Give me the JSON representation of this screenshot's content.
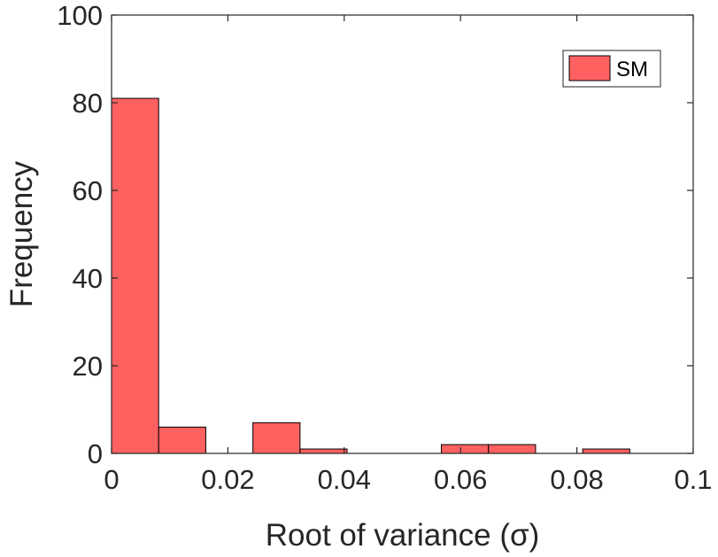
{
  "chart_data": {
    "type": "bar",
    "bins": [
      {
        "x0": 0.0,
        "x1": 0.0081,
        "count": 81
      },
      {
        "x0": 0.0081,
        "x1": 0.0162,
        "count": 6
      },
      {
        "x0": 0.0162,
        "x1": 0.0243,
        "count": 0
      },
      {
        "x0": 0.0243,
        "x1": 0.0324,
        "count": 7
      },
      {
        "x0": 0.0324,
        "x1": 0.0405,
        "count": 1
      },
      {
        "x0": 0.0405,
        "x1": 0.0486,
        "count": 0
      },
      {
        "x0": 0.0486,
        "x1": 0.0567,
        "count": 0
      },
      {
        "x0": 0.0567,
        "x1": 0.0648,
        "count": 2
      },
      {
        "x0": 0.0648,
        "x1": 0.0729,
        "count": 2
      },
      {
        "x0": 0.0729,
        "x1": 0.081,
        "count": 0
      },
      {
        "x0": 0.081,
        "x1": 0.0891,
        "count": 1
      }
    ],
    "series": [
      {
        "name": "SM",
        "color": "#ff6161"
      }
    ],
    "xlabel": "Root of variance (σ)",
    "ylabel": "Frequency",
    "xlim": [
      0,
      0.1
    ],
    "ylim": [
      0,
      100
    ],
    "xticks": [
      0,
      0.02,
      0.04,
      0.06,
      0.08,
      0.1
    ],
    "xtick_labels": [
      "0",
      "0.02",
      "0.04",
      "0.06",
      "0.08",
      "0.1"
    ],
    "yticks": [
      0,
      20,
      40,
      60,
      80,
      100
    ],
    "ytick_labels": [
      "0",
      "20",
      "40",
      "60",
      "80",
      "100"
    ],
    "grid": false,
    "legend_position": "top-right"
  }
}
